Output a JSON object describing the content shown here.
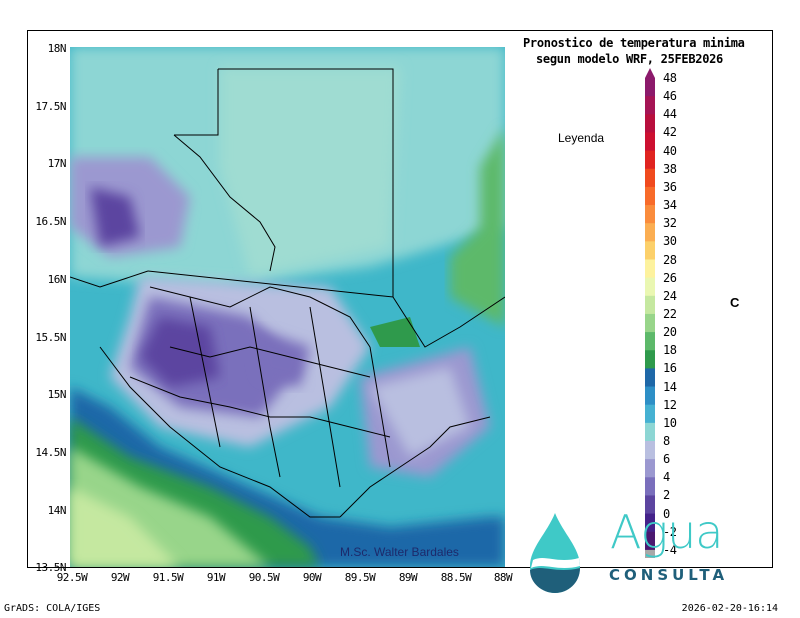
{
  "title": {
    "line1": "Pronostico de temperatura minima",
    "line2": "segun modelo WRF, 25FEB2026"
  },
  "legend_label": "Leyenda",
  "unit": "C",
  "credit": "M.Sc. Walter Bardales",
  "footer": {
    "left": "GrADS: COLA/IGES",
    "right": "2026-02-20-16:14"
  },
  "logo": {
    "word": "Agua",
    "sub": "CONSULTA"
  },
  "colors": {
    "accent_teal": "#3fc9c7",
    "accent_navy": "#1f5f7a"
  },
  "map": {
    "lat_labels": [
      "18N",
      "17.5N",
      "17N",
      "16.5N",
      "16N",
      "15.5N",
      "15N",
      "14.5N",
      "14N",
      "13.5N"
    ],
    "lon_labels": [
      "92.5W",
      "92W",
      "91.5W",
      "91W",
      "90.5W",
      "90W",
      "89.5W",
      "89W",
      "88.5W",
      "88W"
    ],
    "lat_range": [
      13.5,
      18
    ],
    "lon_range": [
      -92.5,
      -88
    ]
  },
  "colorbar": {
    "labels": [
      "48",
      "46",
      "44",
      "42",
      "40",
      "38",
      "36",
      "34",
      "32",
      "30",
      "28",
      "26",
      "24",
      "22",
      "20",
      "18",
      "16",
      "14",
      "12",
      "10",
      "8",
      "6",
      "4",
      "2",
      "0",
      "-2",
      "-4"
    ],
    "colors": [
      "#8c1a6b",
      "#a51455",
      "#b80f3d",
      "#cc1030",
      "#e02420",
      "#f04a1e",
      "#f86b2a",
      "#fa8c3c",
      "#fbae52",
      "#fcd06a",
      "#fdf29e",
      "#eaf7b2",
      "#c5e8a0",
      "#98d58a",
      "#5db96a",
      "#2f9a4c",
      "#1f68a8",
      "#2e8fc6",
      "#46b1d2",
      "#8dd6d4",
      "#b9bfe0",
      "#9b98d0",
      "#7a6fbc",
      "#5c45a0",
      "#44228a",
      "#4a1870",
      "#a8a8a8"
    ],
    "range": [
      -4,
      48
    ]
  }
}
